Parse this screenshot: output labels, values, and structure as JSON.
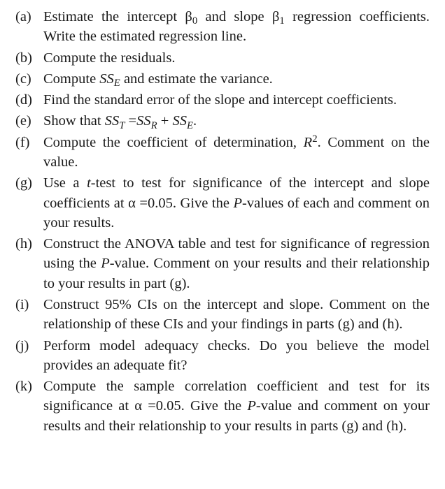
{
  "items": [
    {
      "label": "(a)",
      "html": "Estimate the intercept &beta;<span class=\"sub\">0</span> and slope &beta;<span class=\"sub\">1</span> regression coefficients. Write the estimated regression line."
    },
    {
      "label": "(b)",
      "html": "Compute the residuals."
    },
    {
      "label": "(c)",
      "html": "Compute <span class=\"ital\">SS</span><span class=\"sub ital\">E</span> and estimate the variance."
    },
    {
      "label": "(d)",
      "html": "Find the standard error of the slope and intercept coefficients."
    },
    {
      "label": "(e)",
      "html": "Show that <span class=\"ital\">SS</span><span class=\"sub ital\">T</span> =<span class=\"ital\">SS</span><span class=\"sub ital\">R</span> + <span class=\"ital\">SS</span><span class=\"sub ital\">E</span>."
    },
    {
      "label": "(f)",
      "html": "Compute the coefficient of determination, <span class=\"ital\">R</span><span class=\"sup\">2</span>. Comment on the value."
    },
    {
      "label": "(g)",
      "html": "Use a <span class=\"ital\">t</span>-test to test for significance of the intercept and slope coefficients at &alpha; =0.05. Give the <span class=\"ital\">P</span>-values of each and comment on your results."
    },
    {
      "label": "(h)",
      "html": "Construct the ANOVA table and test for significance of regression using the <span class=\"ital\">P</span>-value. Comment on your results and their relationship to your results in part (g)."
    },
    {
      "label": "(i)",
      "html": "Construct 95% CIs on the intercept and slope. Comment on the relationship of these CIs and your findings in parts (g) and (h)."
    },
    {
      "label": "(j)",
      "html": "Perform model adequacy checks. Do you believe the model provides an adequate fit?"
    },
    {
      "label": "(k)",
      "html": "Compute the sample correlation coefficient and test for its significance at &alpha; =0.05. Give the <span class=\"ital\">P</span>-value and comment on your results and their relationship to your results in parts (g) and (h)."
    }
  ]
}
